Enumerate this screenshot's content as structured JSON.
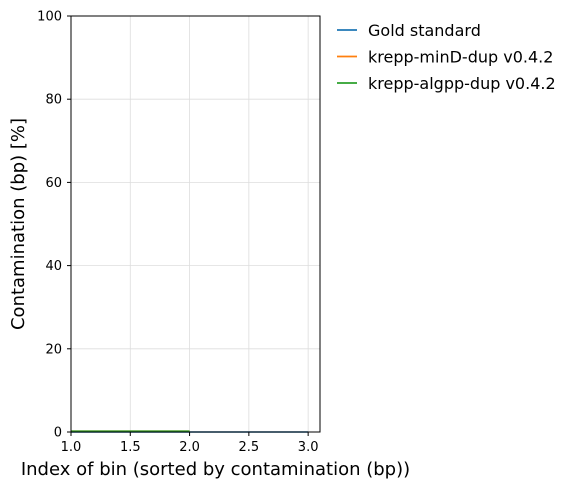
{
  "chart_data": {
    "type": "line",
    "title": "",
    "xlabel": "Index of bin (sorted by contamination (bp))",
    "ylabel": "Contamination (bp) [%]",
    "xlim": [
      1.0,
      3.1
    ],
    "ylim": [
      0,
      100
    ],
    "xticks": [
      1.0,
      1.5,
      2.0,
      2.5,
      3.0
    ],
    "xtick_labels": [
      "1.0",
      "1.5",
      "2.0",
      "2.5",
      "3.0"
    ],
    "yticks": [
      0,
      20,
      40,
      60,
      80,
      100
    ],
    "ytick_labels": [
      "0",
      "20",
      "40",
      "60",
      "80",
      "100"
    ],
    "grid": true,
    "legend_position": "outside-top-right",
    "series": [
      {
        "name": "Gold standard",
        "color": "#1f77b4",
        "x": [
          1,
          2,
          3
        ],
        "y": [
          0,
          0,
          0
        ]
      },
      {
        "name": "krepp-minD-dup v0.4.2",
        "color": "#ff7f0e",
        "x": [
          1,
          2
        ],
        "y": [
          0.2,
          0.2
        ]
      },
      {
        "name": "krepp-algpp-dup v0.4.2",
        "color": "#2ca02c",
        "x": [
          1,
          2
        ],
        "y": [
          0.2,
          0.2
        ]
      }
    ]
  }
}
